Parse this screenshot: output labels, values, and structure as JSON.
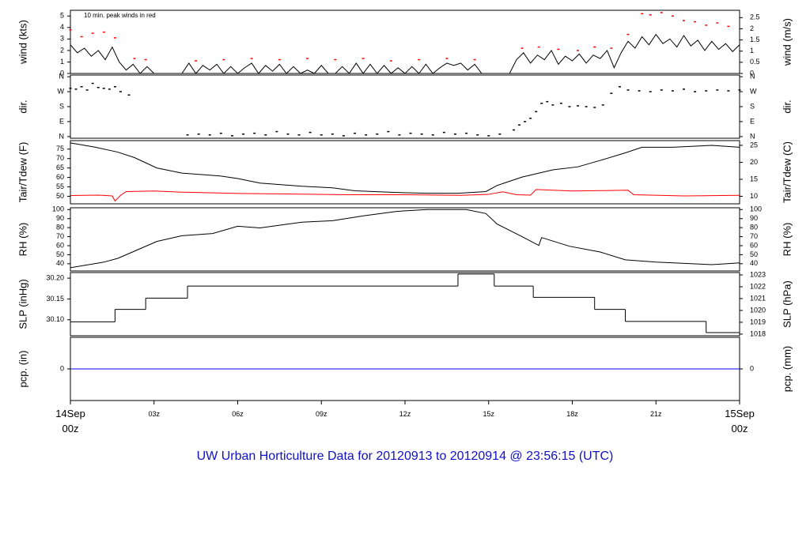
{
  "title": "UW Urban Horticulture Data for 20120913  to  20120914 @ 23:56:15  (UTC)",
  "x_axis": {
    "xlim": [
      0,
      24
    ],
    "end_label_color": "#ff0000",
    "xticks": [
      {
        "value": 0,
        "label": "14Sep 00z"
      },
      {
        "value": 3,
        "label": "03z"
      },
      {
        "value": 6,
        "label": "06z"
      },
      {
        "value": 9,
        "label": "09z"
      },
      {
        "value": 12,
        "label": "12z"
      },
      {
        "value": 15,
        "label": "15z"
      },
      {
        "value": 18,
        "label": "18z"
      },
      {
        "value": 21,
        "label": "21z"
      },
      {
        "value": 24,
        "label": "15Sep 00z"
      }
    ]
  },
  "chart_data": [
    {
      "type": "line",
      "ylabel": "wind (kts)",
      "y2label": "wind (m/s)",
      "annotation": "10 min. peak winds in red",
      "annotation_color": "#ff0000",
      "ylim": [
        0,
        5.5
      ],
      "yticks": [
        0,
        1,
        2,
        3,
        4,
        5
      ],
      "y2lim": [
        0,
        2.829
      ],
      "y2ticks": [
        0,
        0.5,
        1,
        1.5,
        2,
        2.5
      ],
      "series": [
        {
          "kind": "line",
          "color": "#000000",
          "x": [
            0,
            0.25,
            0.5,
            0.75,
            1,
            1.25,
            1.5,
            1.75,
            2,
            2.25,
            2.5,
            2.75,
            3,
            3.25,
            3.5,
            3.75,
            4,
            4.25,
            4.5,
            4.75,
            5,
            5.25,
            5.5,
            5.75,
            6,
            6.25,
            6.5,
            6.75,
            7,
            7.25,
            7.5,
            7.75,
            8,
            8.25,
            8.5,
            8.75,
            9,
            9.25,
            9.5,
            9.75,
            10,
            10.25,
            10.5,
            10.75,
            11,
            11.25,
            11.5,
            11.75,
            12,
            12.25,
            12.5,
            12.75,
            13,
            13.25,
            13.5,
            13.75,
            14,
            14.25,
            14.5,
            14.75,
            15,
            15.25,
            15.5,
            15.75,
            16,
            16.25,
            16.5,
            16.75,
            17,
            17.25,
            17.5,
            17.75,
            18,
            18.25,
            18.5,
            18.75,
            19,
            19.25,
            19.5,
            19.75,
            20,
            20.25,
            20.5,
            20.75,
            21,
            21.25,
            21.5,
            21.75,
            22,
            22.25,
            22.5,
            22.75,
            23,
            23.25,
            23.5,
            23.75,
            24
          ],
          "values": [
            2.5,
            1.8,
            2.2,
            1.5,
            2.0,
            1.2,
            2.3,
            1.0,
            0.3,
            0.8,
            0,
            0.6,
            0,
            0,
            0,
            0,
            0,
            0.9,
            0,
            0.7,
            0.3,
            0.8,
            0,
            0.6,
            0,
            0.5,
            0.9,
            0,
            0.7,
            0.2,
            0.8,
            0,
            0.6,
            0,
            0.3,
            0,
            0.7,
            0,
            0,
            0.6,
            0,
            0.9,
            0,
            0.8,
            0,
            0.7,
            0,
            0.5,
            0,
            0.6,
            0,
            0.8,
            0,
            0.5,
            0.9,
            0.7,
            0.9,
            0.3,
            0.8,
            0,
            0,
            0,
            0,
            0,
            1.2,
            1.8,
            0.9,
            1.6,
            1.2,
            2.0,
            0.8,
            1.5,
            1.1,
            1.7,
            0.9,
            1.6,
            1.3,
            2.0,
            0.5,
            1.8,
            2.8,
            2.2,
            3.2,
            2.5,
            3.4,
            2.6,
            3.0,
            2.3,
            3.3,
            2.4,
            2.9,
            2.0,
            2.8,
            2.1,
            2.6,
            1.9,
            2.5
          ]
        },
        {
          "kind": "points",
          "color": "#ff0000",
          "x": [
            0,
            0.4,
            0.8,
            1.2,
            1.6,
            2.3,
            2.7,
            4.5,
            5.5,
            6.5,
            7.5,
            8.5,
            9.5,
            10.5,
            11.5,
            12.5,
            13.5,
            14.5,
            16.2,
            16.8,
            17.5,
            18.2,
            18.8,
            19.4,
            20,
            20.5,
            20.8,
            21.2,
            21.6,
            22,
            22.4,
            22.8,
            23.2,
            23.6
          ],
          "values": [
            3.8,
            3.2,
            3.5,
            3.6,
            3.1,
            1.3,
            1.2,
            1.1,
            1.2,
            1.3,
            1.2,
            1.3,
            1.2,
            1.3,
            1.1,
            1.2,
            1.3,
            1.2,
            2.2,
            2.3,
            2.1,
            2.0,
            2.3,
            2.2,
            3.4,
            5.2,
            5.1,
            5.3,
            5.0,
            4.6,
            4.5,
            4.2,
            4.4,
            4.1
          ]
        }
      ]
    },
    {
      "type": "scatter",
      "ylabel": "dir.",
      "y2label": "dir.",
      "ylim": [
        -10,
        370
      ],
      "yticks": [
        {
          "value": 0,
          "label": "N"
        },
        {
          "value": 90,
          "label": "E"
        },
        {
          "value": 180,
          "label": "S"
        },
        {
          "value": 270,
          "label": "W"
        },
        {
          "value": 360,
          "label": "N"
        }
      ],
      "y2lim": [
        -10,
        370
      ],
      "y2ticks": [
        {
          "value": 0,
          "label": "N"
        },
        {
          "value": 90,
          "label": "E"
        },
        {
          "value": 180,
          "label": "S"
        },
        {
          "value": 270,
          "label": "W"
        },
        {
          "value": 360,
          "label": "N"
        }
      ],
      "series": [
        {
          "kind": "points",
          "color": "#000000",
          "x": [
            0,
            0.2,
            0.4,
            0.6,
            0.8,
            1,
            1.2,
            1.4,
            1.6,
            1.8,
            2.1,
            4.2,
            4.6,
            5,
            5.4,
            5.8,
            6.2,
            6.6,
            7,
            7.4,
            7.8,
            8.2,
            8.6,
            9,
            9.4,
            9.8,
            10.2,
            10.6,
            11,
            11.4,
            11.8,
            12.2,
            12.6,
            13,
            13.4,
            13.8,
            14.2,
            14.6,
            15,
            15.4,
            15.9,
            16.1,
            16.3,
            16.5,
            16.7,
            16.9,
            17.1,
            17.3,
            17.6,
            17.9,
            18.2,
            18.5,
            18.8,
            19.1,
            19.4,
            19.7,
            20,
            20.4,
            20.8,
            21.2,
            21.6,
            22,
            22.4,
            22.8,
            23.2,
            23.6,
            24
          ],
          "values": [
            290,
            285,
            300,
            280,
            320,
            295,
            290,
            285,
            300,
            270,
            250,
            10,
            15,
            10,
            20,
            5,
            15,
            20,
            10,
            30,
            15,
            10,
            25,
            10,
            15,
            5,
            20,
            10,
            15,
            30,
            10,
            20,
            15,
            10,
            25,
            15,
            20,
            10,
            5,
            15,
            40,
            70,
            90,
            110,
            150,
            200,
            210,
            190,
            200,
            180,
            185,
            180,
            175,
            190,
            260,
            300,
            280,
            275,
            270,
            280,
            275,
            285,
            270,
            275,
            280,
            275,
            280
          ]
        }
      ]
    },
    {
      "type": "line",
      "ylabel": "Tair/Tdew (F)",
      "y2label": "Tair/Tdew (C)",
      "ylim": [
        46,
        79.5
      ],
      "yticks": [
        50,
        55,
        60,
        65,
        70,
        75
      ],
      "y2lim": [
        7.78,
        26.39
      ],
      "y2ticks": [
        10,
        15,
        20,
        25
      ],
      "series": [
        {
          "kind": "line",
          "color": "#000000",
          "x": [
            0,
            0.9,
            1.7,
            2.3,
            3.1,
            4,
            5.4,
            6,
            6.8,
            8.3,
            9.4,
            10.2,
            11.7,
            12.8,
            13.9,
            14.9,
            15.3,
            16.2,
            17.3,
            18.2,
            19,
            19.9,
            20.5,
            21.6,
            23,
            24
          ],
          "values": [
            78.3,
            76,
            73.4,
            70.5,
            65,
            62.3,
            60.7,
            59.4,
            57,
            55.3,
            54.5,
            52.9,
            52,
            51.6,
            51.6,
            52.5,
            55.7,
            60.2,
            64,
            65.6,
            69,
            73,
            76,
            76,
            77,
            76
          ]
        },
        {
          "kind": "line",
          "color": "#ff0000",
          "x": [
            0,
            1,
            1.5,
            1.6,
            1.8,
            2,
            3,
            4,
            6,
            8,
            10,
            12,
            14,
            15,
            15.5,
            16,
            16.5,
            16.7,
            18,
            19,
            20,
            20.2,
            22,
            24
          ],
          "values": [
            50.4,
            50.6,
            50.2,
            47.5,
            50.5,
            52.5,
            52.8,
            52.2,
            51.5,
            51.2,
            50.8,
            50.8,
            50.5,
            51,
            52.4,
            50.8,
            50.6,
            53.6,
            52.8,
            53,
            53.2,
            50.8,
            50.2,
            50.5
          ]
        }
      ]
    },
    {
      "type": "line",
      "ylabel": "RH (%)",
      "y2label": "RH (%)",
      "ylim": [
        32,
        102
      ],
      "yticks": [
        40,
        50,
        60,
        70,
        80,
        90,
        100
      ],
      "y2lim": [
        32,
        102
      ],
      "y2ticks": [
        40,
        50,
        60,
        70,
        80,
        90,
        100
      ],
      "series": [
        {
          "kind": "line",
          "color": "#000000",
          "x": [
            0,
            1.2,
            1.7,
            2.3,
            3.1,
            4,
            5.1,
            6,
            6.8,
            8.3,
            9.4,
            10.5,
            11.7,
            12.8,
            14.2,
            14.9,
            15.3,
            16.2,
            16.8,
            16.9,
            17.9,
            19,
            19.9,
            21,
            23,
            24
          ],
          "values": [
            35.6,
            41.8,
            46,
            54,
            64.7,
            71,
            73.5,
            81.5,
            79.7,
            86,
            87.7,
            93,
            98,
            100,
            100,
            95.6,
            84,
            70,
            60.3,
            69,
            59.4,
            53,
            44.4,
            41.8,
            39,
            41
          ]
        }
      ]
    },
    {
      "type": "step",
      "ylabel": "SLP (inHg)",
      "y2label": "SLP (hPa)",
      "ylim": [
        30.0615,
        30.2135
      ],
      "yticks": [
        {
          "value": 30.1,
          "label": "30.10"
        },
        30.15,
        {
          "value": 30.2,
          "label": "30.20"
        }
      ],
      "y2lim": [
        1017.86,
        1023.2
      ],
      "y2ticks": [
        1018,
        1019,
        1020,
        1021,
        1022,
        1023
      ],
      "series": [
        {
          "kind": "step",
          "color": "#000000",
          "x": [
            0,
            1.6,
            2.7,
            4.2,
            13.9,
            15.2,
            16.6,
            18.8,
            19.9,
            22.8
          ],
          "values": [
            30.095,
            30.125,
            30.152,
            30.181,
            30.21,
            30.181,
            30.154,
            30.125,
            30.096,
            30.069
          ]
        }
      ]
    },
    {
      "type": "line",
      "ylabel": "pcp. (in)",
      "y2label": "pcp. (mm)",
      "ylim": [
        -0.1,
        0.1
      ],
      "yticks": [
        0
      ],
      "y2lim": [
        -0.1,
        0.1
      ],
      "y2ticks": [
        0
      ],
      "series": [
        {
          "kind": "line",
          "color": "#0000ff",
          "x": [
            0,
            24
          ],
          "values": [
            0,
            0
          ]
        }
      ]
    }
  ]
}
